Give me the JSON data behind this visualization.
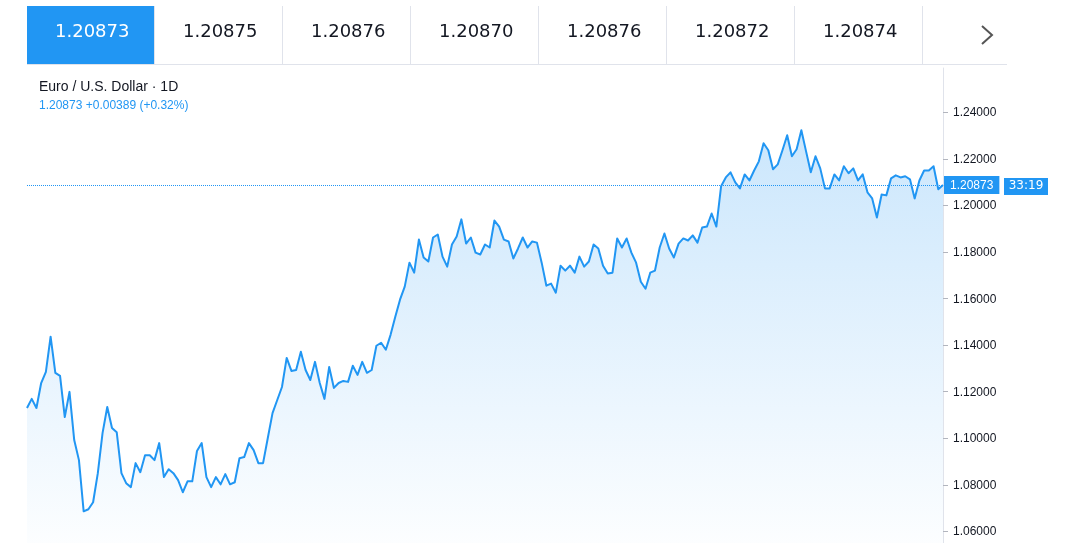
{
  "chart_data": {
    "type": "area",
    "title": "Euro / U.S. Dollar · 1D",
    "subtitle": "1.20873 +0.00389 (+0.32%)",
    "annotations": [
      "1.20873",
      "1.20875",
      "1.20876",
      "1.20870",
      "1.20876",
      "1.20872",
      "1.20874",
      "33:19"
    ],
    "categories": [
      null,
      null,
      null,
      null,
      null,
      null,
      null,
      null,
      null,
      null,
      null,
      null,
      null,
      null,
      null,
      null,
      null,
      null,
      null,
      null,
      null,
      null,
      null,
      null,
      null,
      null,
      null,
      null,
      null,
      null,
      null,
      null,
      null,
      null,
      null,
      null,
      null,
      null,
      null,
      null,
      null,
      null,
      null,
      null,
      null,
      null,
      null,
      null,
      null,
      null,
      null,
      null,
      null,
      null,
      null,
      null,
      null,
      null,
      null,
      null,
      null,
      null,
      null,
      null,
      null,
      null,
      null,
      null,
      null,
      null,
      null,
      null,
      null,
      null,
      null,
      null,
      null,
      null,
      null,
      null,
      null,
      null,
      null,
      null,
      null,
      null,
      null,
      null,
      null,
      null,
      null,
      null,
      null,
      null,
      null,
      null,
      null,
      null,
      null,
      null,
      null,
      null,
      null,
      null,
      null,
      null,
      null,
      null,
      null,
      null,
      null,
      null,
      null,
      null,
      null,
      null,
      null,
      null,
      null,
      null,
      null,
      null,
      null,
      null,
      null,
      null,
      null,
      null,
      null,
      null,
      null,
      null,
      null,
      null,
      null,
      null,
      null,
      null,
      null,
      null,
      null,
      null,
      null,
      null,
      null,
      null,
      null,
      null,
      null,
      null,
      null,
      null,
      null,
      null,
      null,
      null,
      null,
      null,
      null,
      null,
      null,
      null,
      null,
      null,
      null,
      null,
      null,
      null,
      null,
      null,
      null,
      null,
      null,
      null,
      null,
      null,
      null,
      null,
      null,
      null,
      null,
      null,
      null,
      null,
      null,
      null,
      null,
      null,
      null,
      null,
      null,
      null,
      null,
      null,
      null
    ],
    "series": [
      {
        "color": "#2196f3",
        "values": [
          1.113,
          1.1169,
          1.113,
          1.1237,
          1.1285,
          1.1436,
          1.1281,
          1.1268,
          1.1091,
          1.1199,
          1.0992,
          1.0906,
          1.0686,
          1.0695,
          1.0725,
          1.085,
          1.1022,
          1.1134,
          1.1044,
          1.1026,
          1.085,
          1.0807,
          1.079,
          1.0893,
          1.0854,
          1.0927,
          1.0927,
          1.0906,
          1.0979,
          1.0833,
          1.0867,
          1.085,
          1.082,
          1.0768,
          1.0815,
          1.0815,
          1.0945,
          1.0979,
          1.0833,
          1.079,
          1.0833,
          1.0802,
          1.0846,
          1.0802,
          1.0811,
          1.0914,
          1.0919,
          1.0979,
          1.0949,
          1.0893,
          1.0893,
          1.1001,
          1.1108,
          1.1164,
          1.122,
          1.1345,
          1.1289,
          1.1293,
          1.1371,
          1.1293,
          1.125,
          1.1328,
          1.1237,
          1.1169,
          1.1306,
          1.1216,
          1.1237,
          1.1246,
          1.1242,
          1.1311,
          1.1272,
          1.1328,
          1.1281,
          1.1293,
          1.1397,
          1.141,
          1.138,
          1.1444,
          1.1522,
          1.1595,
          1.1651,
          1.1754,
          1.1711,
          1.1853,
          1.1776,
          1.1759,
          1.1862,
          1.1875,
          1.178,
          1.1737,
          1.1832,
          1.1866,
          1.194,
          1.1836,
          1.1862,
          1.1797,
          1.1789,
          1.1832,
          1.1819,
          1.1935,
          1.1909,
          1.1853,
          1.1845,
          1.1772,
          1.1815,
          1.1862,
          1.1819,
          1.1845,
          1.184,
          1.1754,
          1.1655,
          1.1664,
          1.1625,
          1.1741,
          1.172,
          1.1741,
          1.1711,
          1.178,
          1.1737,
          1.1759,
          1.1832,
          1.1815,
          1.1741,
          1.1707,
          1.1711,
          1.1858,
          1.1819,
          1.1858,
          1.1797,
          1.1754,
          1.1672,
          1.1642,
          1.1711,
          1.172,
          1.1819,
          1.1879,
          1.1815,
          1.1776,
          1.1836,
          1.1858,
          1.1849,
          1.1871,
          1.184,
          1.1905,
          1.1909,
          1.1965,
          1.1909,
          1.2082,
          1.212,
          1.2142,
          1.2099,
          1.2073,
          1.2133,
          1.2107,
          1.215,
          1.2189,
          1.2267,
          1.2237,
          1.2155,
          1.2176,
          1.2237,
          1.2301,
          1.2211,
          1.2241,
          1.2323,
          1.2232,
          1.2142,
          1.2211,
          1.2159,
          1.2073,
          1.2073,
          1.2133,
          1.2107,
          1.2168,
          1.2138,
          1.2159,
          1.2107,
          1.2133,
          1.2056,
          1.203,
          1.1948,
          1.2047,
          1.2043,
          1.2116,
          1.2129,
          1.212,
          1.2125,
          1.2112,
          1.203,
          1.2107,
          1.215,
          1.215,
          1.2168,
          1.2069,
          1.2087
        ]
      }
    ],
    "ylim": [
      1.055,
      1.259
    ],
    "yticks": [
      {
        "value": 1.06,
        "label": "1.06000"
      },
      {
        "value": 1.08,
        "label": "1.08000"
      },
      {
        "value": 1.1,
        "label": "1.10000"
      },
      {
        "value": 1.12,
        "label": "1.12000"
      },
      {
        "value": 1.14,
        "label": "1.14000"
      },
      {
        "value": 1.16,
        "label": "1.16000"
      },
      {
        "value": 1.18,
        "label": "1.18000"
      },
      {
        "value": 1.2,
        "label": "1.20000"
      },
      {
        "value": 1.22,
        "label": "1.22000"
      },
      {
        "value": 1.24,
        "label": "1.24000"
      }
    ],
    "ref_lines": [
      {
        "axis": "y",
        "value": 1.20873,
        "label": "1.20873",
        "color": "#2196f3",
        "line_style": "dotted"
      }
    ],
    "grid": false,
    "line_style": "solid",
    "tick_labels": "y"
  }
}
